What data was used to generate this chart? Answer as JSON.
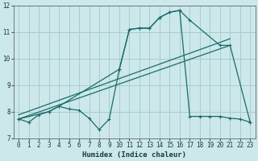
{
  "xlabel": "Humidex (Indice chaleur)",
  "bg_color": "#cce8ea",
  "line_color": "#1a6b6b",
  "xlim": [
    -0.5,
    23.5
  ],
  "ylim": [
    7,
    12
  ],
  "xticks": [
    0,
    1,
    2,
    3,
    4,
    5,
    6,
    7,
    8,
    9,
    10,
    11,
    12,
    13,
    14,
    15,
    16,
    17,
    18,
    19,
    20,
    21,
    22,
    23
  ],
  "yticks": [
    7,
    8,
    9,
    10,
    11,
    12
  ],
  "grid_color": "#aacccc",
  "line1_x": [
    0,
    1,
    2,
    3,
    4,
    5,
    6,
    7,
    8,
    9,
    10,
    11,
    12,
    13,
    14,
    15,
    16,
    17,
    18,
    19,
    20,
    21,
    22,
    23
  ],
  "line1_y": [
    7.72,
    7.6,
    7.88,
    8.0,
    8.2,
    8.1,
    8.05,
    7.75,
    7.32,
    7.72,
    9.6,
    11.1,
    11.15,
    11.15,
    11.55,
    11.75,
    11.82,
    7.82,
    7.82,
    7.82,
    7.82,
    7.75,
    7.72,
    7.6
  ],
  "line2_x": [
    0,
    3,
    4,
    10,
    11,
    12,
    13,
    14,
    15,
    16,
    17,
    20,
    21,
    23
  ],
  "line2_y": [
    7.72,
    8.0,
    8.2,
    9.6,
    11.1,
    11.15,
    11.15,
    11.55,
    11.75,
    11.82,
    11.45,
    10.5,
    10.5,
    7.6
  ],
  "line3_x": [
    0,
    21
  ],
  "line3_y": [
    7.72,
    10.5
  ],
  "line4_x": [
    0,
    21
  ],
  "line4_y": [
    7.88,
    10.75
  ]
}
